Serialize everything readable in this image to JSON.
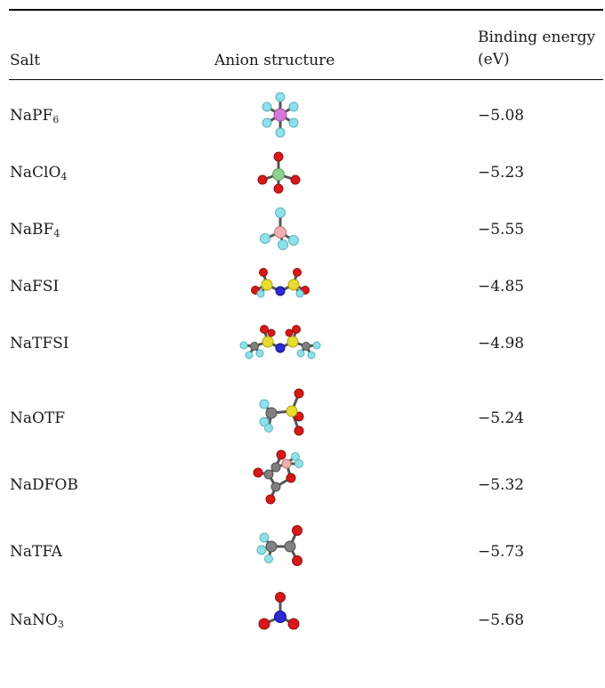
{
  "table": {
    "headers": {
      "salt": "Salt",
      "anion": "Anion structure",
      "energy_line1": "Binding energy",
      "energy_line2": "(eV)"
    },
    "rows": [
      {
        "salt": "NaPF",
        "sub": "6",
        "energy": "−5.08",
        "structure_icon": "pf6-anion-icon"
      },
      {
        "salt": "NaClO",
        "sub": "4",
        "energy": "−5.23",
        "structure_icon": "clo4-anion-icon"
      },
      {
        "salt": "NaBF",
        "sub": "4",
        "energy": "−5.55",
        "structure_icon": "bf4-anion-icon"
      },
      {
        "salt": "NaFSI",
        "sub": "",
        "energy": "−4.85",
        "structure_icon": "fsi-anion-icon"
      },
      {
        "salt": "NaTFSI",
        "sub": "",
        "energy": "−4.98",
        "structure_icon": "tfsi-anion-icon"
      },
      {
        "salt": "NaOTF",
        "sub": "",
        "energy": "−5.24",
        "structure_icon": "otf-anion-icon"
      },
      {
        "salt": "NaDFOB",
        "sub": "",
        "energy": "−5.32",
        "structure_icon": "dfob-anion-icon"
      },
      {
        "salt": "NaTFA",
        "sub": "",
        "energy": "−5.73",
        "structure_icon": "tfa-anion-icon"
      },
      {
        "salt": "NaNO",
        "sub": "3",
        "energy": "−5.68",
        "structure_icon": "no3-anion-icon"
      }
    ]
  },
  "colors": {
    "fluorine": "#8fe0e8",
    "oxygen": "#d81818",
    "phosphorus": "#d27ad6",
    "chlorine": "#8fd08f",
    "boron": "#f0b0b0",
    "sulfur": "#e8dc30",
    "nitrogen": "#2a2ad8",
    "carbon": "#808080"
  }
}
